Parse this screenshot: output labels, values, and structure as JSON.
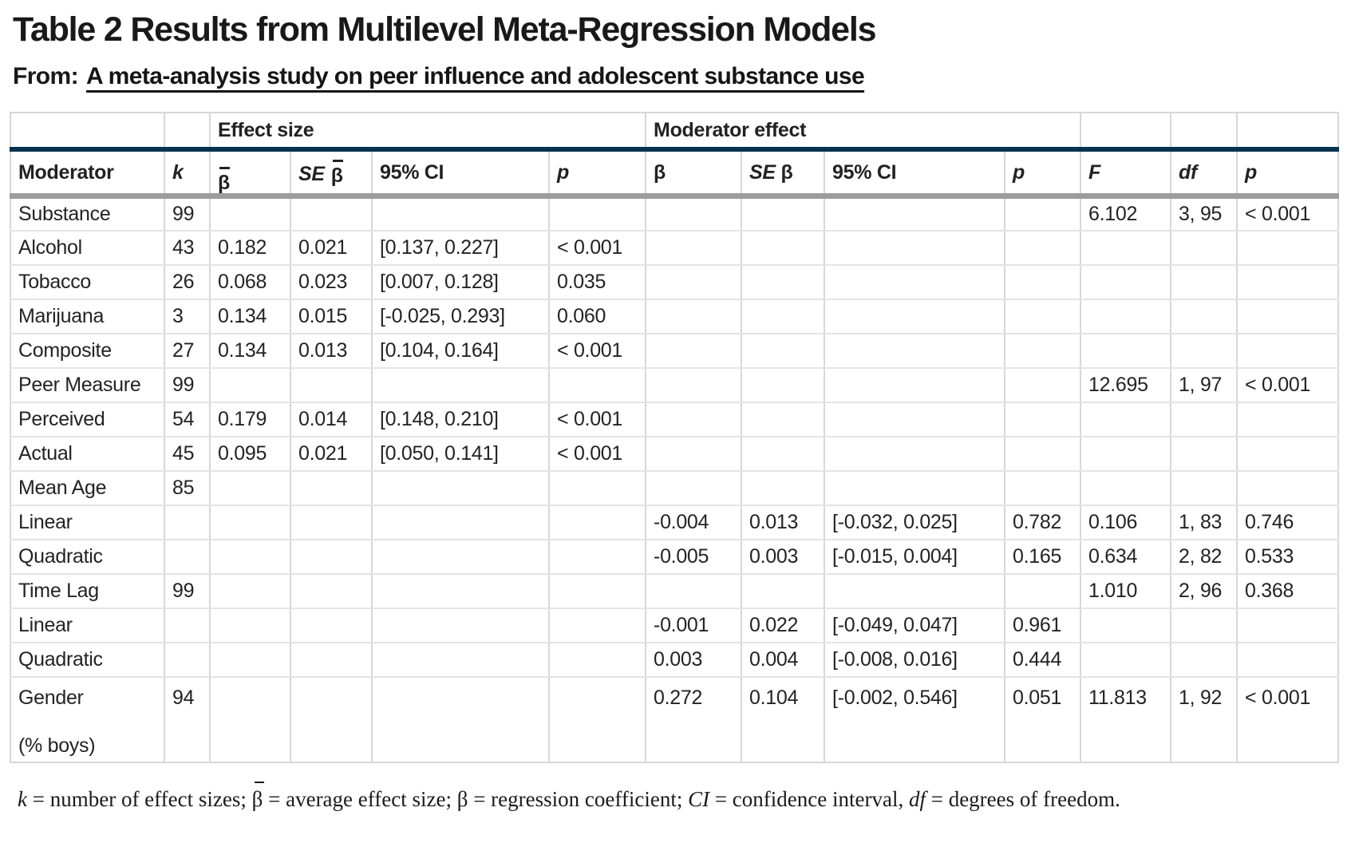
{
  "page": {
    "title": "Table 2 Results from Multilevel Meta-Regression Models",
    "from_label": "From:",
    "source_link": "A meta-analysis study on peer influence and adolescent substance use"
  },
  "theme": {
    "group_rule_navy": "#06334d",
    "header_rule_gray": "#9c9c9c",
    "cell_border": "#d7d7d7",
    "row_border": "#e4e4e4",
    "text": "#1f1f1f"
  },
  "table": {
    "group_effect": "Effect size",
    "group_moderator": "Moderator effect",
    "header": {
      "moderator": "Moderator",
      "k": "k",
      "se": "SE",
      "beta": "β",
      "ci": "95% CI",
      "p": "p",
      "f": "F",
      "df": "df"
    },
    "rows": [
      {
        "moderator": "Substance",
        "k": "99",
        "es_beta": "",
        "es_se": "",
        "es_ci": "",
        "es_p": "",
        "m_beta": "",
        "m_se": "",
        "m_ci": "",
        "m_p": "",
        "f": "6.102",
        "df": "3, 95",
        "p": "< 0.001"
      },
      {
        "moderator": "Alcohol",
        "k": "43",
        "es_beta": "0.182",
        "es_se": "0.021",
        "es_ci": "[0.137, 0.227]",
        "es_p": "< 0.001",
        "m_beta": "",
        "m_se": "",
        "m_ci": "",
        "m_p": "",
        "f": "",
        "df": "",
        "p": ""
      },
      {
        "moderator": "Tobacco",
        "k": "26",
        "es_beta": "0.068",
        "es_se": "0.023",
        "es_ci": "[0.007, 0.128]",
        "es_p": "0.035",
        "m_beta": "",
        "m_se": "",
        "m_ci": "",
        "m_p": "",
        "f": "",
        "df": "",
        "p": ""
      },
      {
        "moderator": "Marijuana",
        "k": "3",
        "es_beta": "0.134",
        "es_se": "0.015",
        "es_ci": "[-0.025, 0.293]",
        "es_p": "0.060",
        "m_beta": "",
        "m_se": "",
        "m_ci": "",
        "m_p": "",
        "f": "",
        "df": "",
        "p": ""
      },
      {
        "moderator": "Composite",
        "k": "27",
        "es_beta": "0.134",
        "es_se": "0.013",
        "es_ci": "[0.104, 0.164]",
        "es_p": "< 0.001",
        "m_beta": "",
        "m_se": "",
        "m_ci": "",
        "m_p": "",
        "f": "",
        "df": "",
        "p": ""
      },
      {
        "moderator": "Peer Measure",
        "k": "99",
        "es_beta": "",
        "es_se": "",
        "es_ci": "",
        "es_p": "",
        "m_beta": "",
        "m_se": "",
        "m_ci": "",
        "m_p": "",
        "f": "12.695",
        "df": "1, 97",
        "p": "< 0.001"
      },
      {
        "moderator": "Perceived",
        "k": "54",
        "es_beta": "0.179",
        "es_se": "0.014",
        "es_ci": "[0.148, 0.210]",
        "es_p": "< 0.001",
        "m_beta": "",
        "m_se": "",
        "m_ci": "",
        "m_p": "",
        "f": "",
        "df": "",
        "p": ""
      },
      {
        "moderator": "Actual",
        "k": "45",
        "es_beta": "0.095",
        "es_se": "0.021",
        "es_ci": "[0.050, 0.141]",
        "es_p": "< 0.001",
        "m_beta": "",
        "m_se": "",
        "m_ci": "",
        "m_p": "",
        "f": "",
        "df": "",
        "p": ""
      },
      {
        "moderator": "Mean Age",
        "k": "85",
        "es_beta": "",
        "es_se": "",
        "es_ci": "",
        "es_p": "",
        "m_beta": "",
        "m_se": "",
        "m_ci": "",
        "m_p": "",
        "f": "",
        "df": "",
        "p": ""
      },
      {
        "moderator": "Linear",
        "k": "",
        "es_beta": "",
        "es_se": "",
        "es_ci": "",
        "es_p": "",
        "m_beta": "-0.004",
        "m_se": "0.013",
        "m_ci": "[-0.032, 0.025]",
        "m_p": "0.782",
        "f": "0.106",
        "df": "1, 83",
        "p": "0.746"
      },
      {
        "moderator": "Quadratic",
        "k": "",
        "es_beta": "",
        "es_se": "",
        "es_ci": "",
        "es_p": "",
        "m_beta": "-0.005",
        "m_se": "0.003",
        "m_ci": "[-0.015, 0.004]",
        "m_p": "0.165",
        "f": "0.634",
        "df": "2, 82",
        "p": "0.533"
      },
      {
        "moderator": "Time Lag",
        "k": "99",
        "es_beta": "",
        "es_se": "",
        "es_ci": "",
        "es_p": "",
        "m_beta": "",
        "m_se": "",
        "m_ci": "",
        "m_p": "",
        "f": "1.010",
        "df": "2, 96",
        "p": "0.368"
      },
      {
        "moderator": "Linear",
        "k": "",
        "es_beta": "",
        "es_se": "",
        "es_ci": "",
        "es_p": "",
        "m_beta": "-0.001",
        "m_se": "0.022",
        "m_ci": "[-0.049, 0.047]",
        "m_p": "0.961",
        "f": "",
        "df": "",
        "p": ""
      },
      {
        "moderator": "Quadratic",
        "k": "",
        "es_beta": "",
        "es_se": "",
        "es_ci": "",
        "es_p": "",
        "m_beta": "0.003",
        "m_se": "0.004",
        "m_ci": "[-0.008, 0.016]",
        "m_p": "0.444",
        "f": "",
        "df": "",
        "p": ""
      },
      {
        "moderator": "Gender",
        "moderator_line2": "(% boys)",
        "k": "94",
        "es_beta": "",
        "es_se": "",
        "es_ci": "",
        "es_p": "",
        "m_beta": "0.272",
        "m_se": "0.104",
        "m_ci": "[-0.002, 0.546]",
        "m_p": "0.051",
        "f": "11.813",
        "df": "1, 92",
        "p": "< 0.001"
      }
    ]
  },
  "footnote": {
    "segments": [
      {
        "text": "k",
        "italic": true
      },
      {
        "text": " = number of effect sizes; "
      },
      {
        "text": "β",
        "bar": true
      },
      {
        "text": " = average effect size; β = regression coefficient; "
      },
      {
        "text": "CI",
        "italic": true
      },
      {
        "text": " = confidence interval, "
      },
      {
        "text": "df",
        "italic": true
      },
      {
        "text": " = degrees of freedom."
      }
    ]
  }
}
